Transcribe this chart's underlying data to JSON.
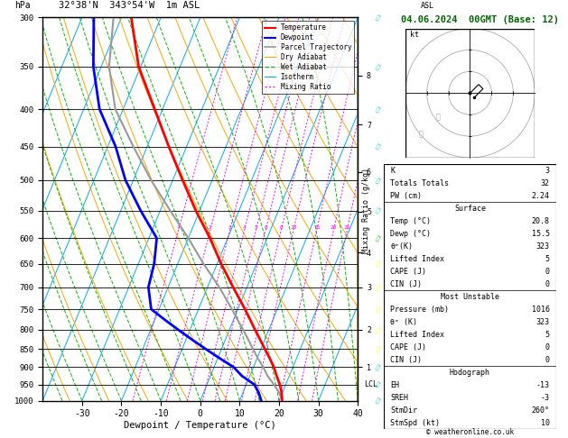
{
  "title_left": "32°38'N  343°54'W  1m ASL",
  "title_right": "04.06.2024  00GMT (Base: 12)",
  "xlabel": "Dewpoint / Temperature (°C)",
  "ylabel_left": "hPa",
  "isotherm_color": "#00AAFF",
  "dry_adiabat_color": "#FFA500",
  "wet_adiabat_color": "#00BB00",
  "mixing_ratio_color": "#FF00FF",
  "temperature_color": "#FF0000",
  "dewpoint_color": "#0000FF",
  "parcel_color": "#999999",
  "pressure_levels": [
    300,
    350,
    400,
    450,
    500,
    550,
    600,
    650,
    700,
    750,
    800,
    850,
    900,
    950,
    1000
  ],
  "temp_ticks": [
    -30,
    -20,
    -10,
    0,
    10,
    20,
    30,
    40
  ],
  "tmin": -40,
  "tmax": 40,
  "pmin": 300,
  "pmax": 1000,
  "temperature_data": {
    "pressure": [
      1000,
      975,
      950,
      925,
      900,
      875,
      850,
      825,
      800,
      775,
      750,
      700,
      650,
      600,
      550,
      500,
      450,
      400,
      350,
      300
    ],
    "temp": [
      20.8,
      19.8,
      18.5,
      16.8,
      15.2,
      13.2,
      11.0,
      8.8,
      6.5,
      4.2,
      1.8,
      -3.5,
      -9.0,
      -14.5,
      -21.0,
      -27.5,
      -34.5,
      -42.0,
      -50.5,
      -57.5
    ],
    "dewp": [
      15.5,
      14.0,
      12.0,
      8.0,
      5.0,
      0.5,
      -4.0,
      -8.5,
      -13.0,
      -17.5,
      -22.0,
      -25.0,
      -26.0,
      -28.0,
      -35.0,
      -42.0,
      -48.0,
      -56.0,
      -62.0,
      -67.0
    ]
  },
  "parcel_data": {
    "pressure": [
      1000,
      975,
      950,
      925,
      900,
      875,
      850,
      825,
      800,
      775,
      750,
      700,
      650,
      600,
      550,
      500,
      450,
      400,
      350,
      300
    ],
    "temp": [
      20.8,
      19.2,
      17.0,
      14.5,
      12.5,
      10.2,
      8.0,
      5.8,
      3.5,
      1.0,
      -1.5,
      -7.0,
      -13.5,
      -20.0,
      -27.5,
      -35.5,
      -43.5,
      -52.0,
      -58.0,
      -62.0
    ]
  },
  "mixing_ratios": [
    1,
    2,
    3,
    4,
    5,
    6,
    8,
    10,
    15,
    20,
    25
  ],
  "km_ticks_val": [
    1,
    2,
    3,
    4,
    5,
    6,
    7,
    8
  ],
  "km_pressures": [
    900,
    800,
    700,
    628,
    552,
    487,
    420,
    360
  ],
  "lcl_pressure": 950,
  "wind_symbols": {
    "pressure": [
      300,
      350,
      400,
      450,
      500,
      550,
      600,
      650,
      700,
      750,
      800,
      850,
      900,
      950,
      1000
    ],
    "colors": [
      "#00CCCC",
      "#00CCCC",
      "#00CCCC",
      "#00CCCC",
      "#00CCCC",
      "#00CCCC",
      "#00CC00",
      "#FFFF00",
      "#FFFF00",
      "#FFFF00",
      "#FFFF00",
      "#FFFF00",
      "#00CCCC",
      "#00CCCC",
      "#00CCCC"
    ]
  },
  "stats": {
    "K": "3",
    "Totals_Totals": "32",
    "PW_cm": "2.24",
    "Surface_Temp": "20.8",
    "Surface_Dewp": "15.5",
    "Surface_theta_e": "323",
    "Lifted_Index": "5",
    "CAPE": "0",
    "CIN": "0",
    "MU_Pressure": "1016",
    "MU_theta_e": "323",
    "MU_LI": "5",
    "MU_CAPE": "0",
    "MU_CIN": "0",
    "EH": "-13",
    "SREH": "-3",
    "StmDir": "260°",
    "StmSpd_kt": "10"
  }
}
